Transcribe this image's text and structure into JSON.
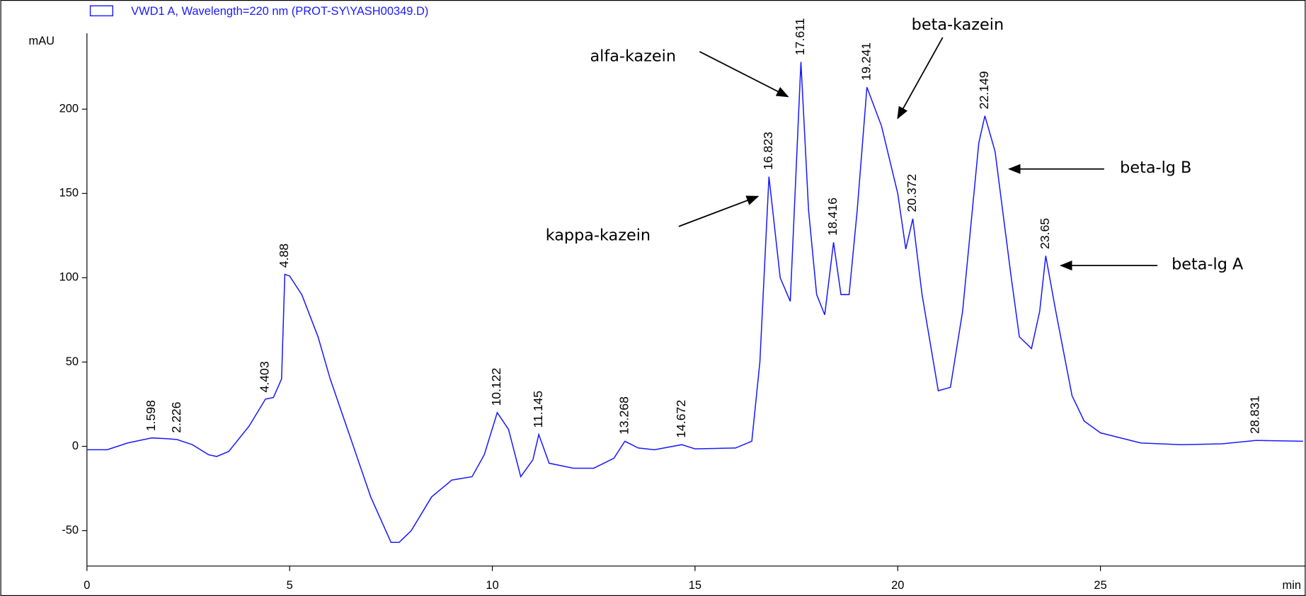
{
  "chart_data": {
    "type": "line",
    "y_label": "mAU",
    "x_label": "min",
    "x": [
      0,
      0.5,
      1.0,
      1.598,
      2.0,
      2.226,
      2.6,
      3.0,
      3.2,
      3.5,
      4.0,
      4.403,
      4.6,
      4.8,
      4.88,
      5.0,
      5.3,
      5.7,
      6.0,
      6.5,
      7.0,
      7.5,
      7.7,
      8.0,
      8.5,
      9.0,
      9.5,
      9.8,
      10.122,
      10.4,
      10.7,
      11.0,
      11.145,
      11.4,
      12.0,
      12.5,
      13.0,
      13.268,
      13.6,
      14.0,
      14.672,
      15.0,
      16.0,
      16.4,
      16.6,
      16.823,
      17.1,
      17.35,
      17.611,
      17.8,
      18.0,
      18.2,
      18.416,
      18.6,
      18.8,
      19.0,
      19.241,
      19.6,
      20.0,
      20.2,
      20.372,
      20.6,
      21.0,
      21.3,
      21.6,
      22.0,
      22.149,
      22.4,
      22.8,
      23.0,
      23.3,
      23.5,
      23.65,
      23.9,
      24.3,
      24.6,
      25.0,
      26.0,
      27.0,
      28.0,
      28.831,
      30.0
    ],
    "series": [
      {
        "name": "VWD1 A, Wavelength=220 nm (PROT-SY\\YASH00349.D)",
        "color": "#1a1aff",
        "values": [
          -2,
          -2,
          2,
          5,
          4.5,
          4,
          1,
          -5,
          -6,
          -3,
          12,
          28,
          29,
          40,
          102,
          101,
          90,
          65,
          40,
          5,
          -30,
          -57,
          -57,
          -50,
          -30,
          -20,
          -18,
          -5,
          20,
          10,
          -18,
          -8,
          7,
          -10,
          -13,
          -13,
          -7,
          3,
          -1,
          -2,
          1,
          -1.5,
          -1,
          3,
          50,
          160,
          100,
          86,
          228,
          140,
          90,
          78,
          121,
          90,
          90,
          140,
          213,
          190,
          150,
          117,
          135,
          90,
          33,
          35,
          80,
          180,
          196,
          175,
          100,
          65,
          58,
          80,
          113,
          80,
          30,
          15,
          8,
          2,
          1,
          1.5,
          3.5,
          3
        ]
      }
    ],
    "peak_labels": [
      1.598,
      2.226,
      4.403,
      4.88,
      10.122,
      11.145,
      13.268,
      14.672,
      16.823,
      17.611,
      18.416,
      19.241,
      20.372,
      22.149,
      23.65,
      28.831
    ],
    "annotations": [
      "alfa-kazein",
      "beta-kazein",
      "kappa-kazein",
      "beta-lg B",
      "beta-lg A"
    ],
    "xlim": [
      0,
      30
    ],
    "ylim": [
      -71,
      245
    ],
    "xticks": [
      0,
      5,
      10,
      15,
      20,
      25
    ],
    "yticks": [
      -50,
      0,
      50,
      100,
      150,
      200
    ]
  }
}
